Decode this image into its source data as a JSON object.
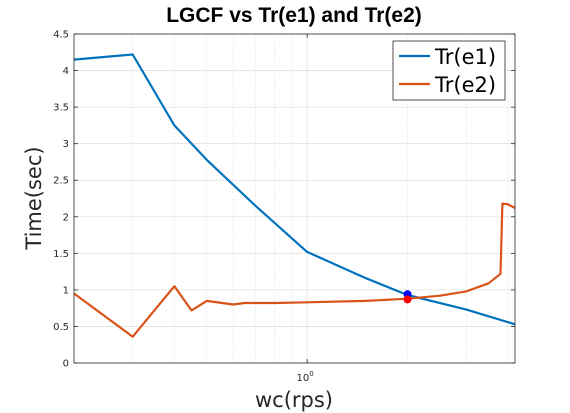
{
  "chart_data": {
    "type": "line",
    "title": "LGCF vs Tr(e1) and Tr(e2)",
    "xlabel": "wc(rps)",
    "ylabel": "Time(sec)",
    "xscale": "log",
    "xlim": [
      0.2,
      4.2
    ],
    "ylim": [
      0,
      4.5
    ],
    "grid": true,
    "legend_location": "top-right",
    "yticks": [
      {
        "value": 0,
        "label": "0"
      },
      {
        "value": 0.5,
        "label": "0.5"
      },
      {
        "value": 1,
        "label": "1"
      },
      {
        "value": 1.5,
        "label": "1.5"
      },
      {
        "value": 2,
        "label": "2"
      },
      {
        "value": 2.5,
        "label": "2.5"
      },
      {
        "value": 3,
        "label": "3"
      },
      {
        "value": 3.5,
        "label": "3.5"
      },
      {
        "value": 4,
        "label": "4"
      },
      {
        "value": 4.5,
        "label": "4.5"
      }
    ],
    "xticks": [
      {
        "value": 1,
        "label_base": "10",
        "label_exp": "0"
      }
    ],
    "series": [
      {
        "name": "Tr(e1)",
        "color": "#0072bd",
        "x": [
          0.2,
          0.3,
          0.4,
          0.5,
          0.7,
          1.0,
          1.5,
          2.0,
          3.0,
          4.2
        ],
        "y": [
          4.15,
          4.22,
          3.25,
          2.78,
          2.15,
          1.52,
          1.16,
          0.93,
          0.73,
          0.53
        ]
      },
      {
        "name": "Tr(e2)",
        "color": "#d95319",
        "x": [
          0.2,
          0.3,
          0.4,
          0.45,
          0.5,
          0.6,
          0.65,
          0.7,
          0.8,
          1.0,
          1.5,
          2.0,
          2.5,
          3.0,
          3.5,
          3.8,
          3.85,
          4.0,
          4.2
        ],
        "y": [
          0.95,
          0.36,
          1.05,
          0.72,
          0.85,
          0.8,
          0.82,
          0.82,
          0.82,
          0.83,
          0.85,
          0.88,
          0.92,
          0.98,
          1.09,
          1.22,
          2.18,
          2.17,
          2.12
        ]
      }
    ],
    "markers": [
      {
        "x": 2.0,
        "y": 0.94,
        "color": "#0000ff"
      },
      {
        "x": 2.0,
        "y": 0.87,
        "color": "#ff0000"
      }
    ]
  }
}
